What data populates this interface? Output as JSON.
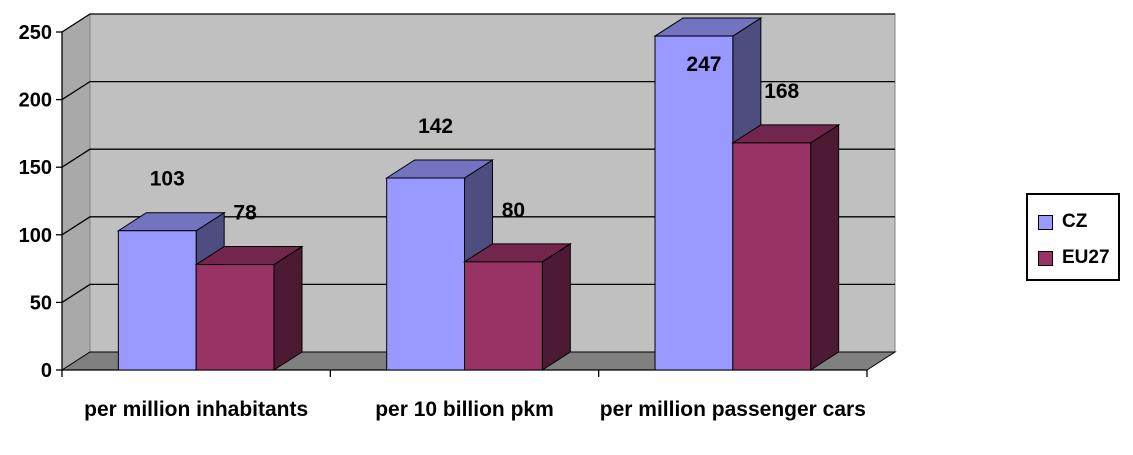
{
  "chart_data": {
    "type": "bar",
    "categories": [
      "per million inhabitants",
      "per 10 billion pkm",
      "per million passenger cars"
    ],
    "series": [
      {
        "name": "CZ",
        "values": [
          103,
          142,
          247
        ],
        "color": "#9999ff"
      },
      {
        "name": "EU27",
        "values": [
          78,
          80,
          168
        ],
        "color": "#993366"
      }
    ],
    "ylim": [
      0,
      250
    ],
    "yticks": [
      0,
      50,
      100,
      150,
      200,
      250
    ],
    "grid": true,
    "legend": "right",
    "style": "3d-clustered-column",
    "wall_color": "#c0c0c0"
  }
}
